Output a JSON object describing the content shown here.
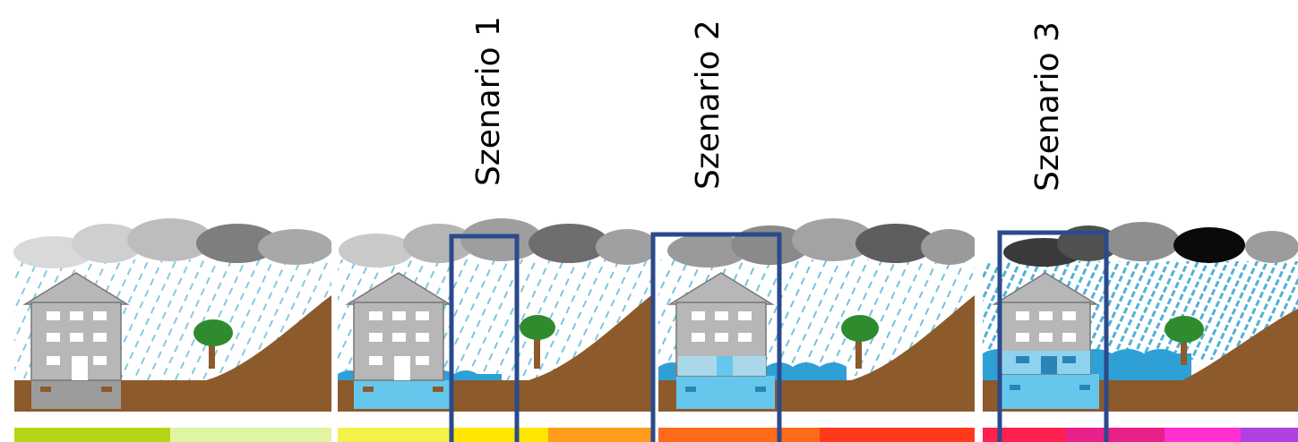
{
  "scenarios": [
    {
      "label": "Szenario 1"
    },
    {
      "label": "Szenario 2"
    },
    {
      "label": "Szenario 3"
    }
  ],
  "highlight_color": "#2b4a8b",
  "colors": {
    "ground": "#8c5a2b",
    "water": "#66c7ec",
    "house": "#b7b7b7",
    "tree": "#2e8b2e",
    "rain": "#5db7d7"
  },
  "severity_scale": [
    "#b4d616",
    "#dff5a0",
    "#f2f24a",
    "#ffe600",
    "#ff9c1a",
    "#ff6a1a",
    "#ff3a1a",
    "#ff2050",
    "#e8208a",
    "#ff2fd0",
    "#b040e0"
  ]
}
